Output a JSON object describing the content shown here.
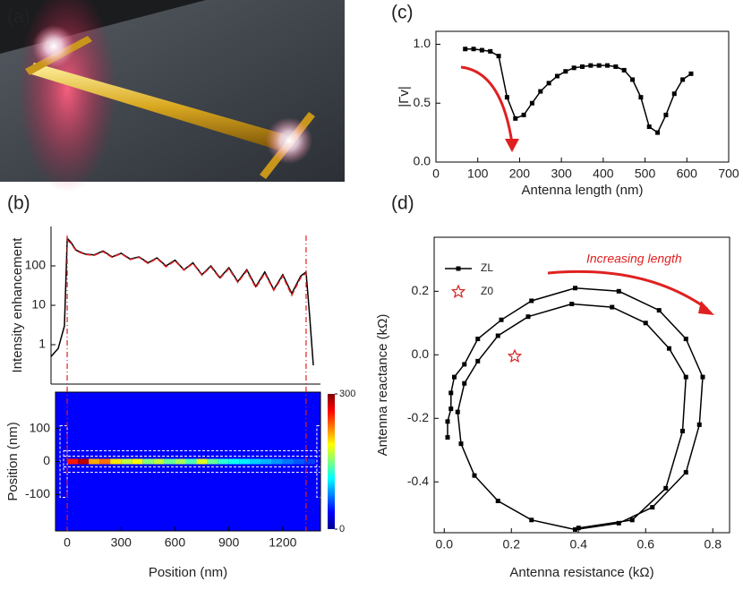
{
  "panels": [
    "(a)",
    "(b)",
    "(c)",
    "(d)"
  ],
  "chart_data": [
    {
      "type": "line",
      "yscale": "log",
      "ylabel": "Intensity enhancement",
      "x": [
        -90,
        -50,
        -15,
        0,
        20,
        50,
        100,
        150,
        200,
        250,
        300,
        350,
        400,
        450,
        500,
        550,
        600,
        650,
        700,
        750,
        800,
        850,
        900,
        950,
        1000,
        1050,
        1100,
        1150,
        1200,
        1250,
        1300,
        1330,
        1350,
        1370
      ],
      "series": [
        {
          "color": "#000000",
          "values": [
            0.5,
            0.8,
            3,
            500,
            400,
            250,
            200,
            190,
            240,
            170,
            210,
            150,
            170,
            120,
            160,
            100,
            140,
            80,
            120,
            60,
            100,
            50,
            90,
            40,
            80,
            30,
            70,
            25,
            60,
            20,
            55,
            70,
            5,
            0.3
          ]
        },
        {
          "color": "#e02020",
          "dash": true,
          "values": [
            null,
            null,
            null,
            450,
            380,
            240,
            195,
            185,
            230,
            165,
            205,
            145,
            165,
            115,
            155,
            95,
            135,
            78,
            115,
            58,
            95,
            48,
            85,
            38,
            75,
            28,
            65,
            24,
            55,
            18,
            50,
            65,
            null,
            null
          ]
        }
      ],
      "xlim": [
        -90,
        1410
      ],
      "ylim": [
        0.1,
        1000
      ],
      "yticks": [
        1,
        10,
        100
      ]
    },
    {
      "type": "heatmap",
      "xlabel": "Position (nm)",
      "ylabel": "Position (nm)",
      "x": [
        0,
        60,
        120,
        180,
        240,
        300,
        360,
        420,
        480,
        540,
        600,
        660,
        720,
        780,
        840,
        900,
        960,
        1020,
        1080,
        1140,
        1200,
        1260,
        1320
      ],
      "values": [
        250,
        280,
        200,
        220,
        180,
        150,
        170,
        130,
        150,
        120,
        140,
        110,
        160,
        120,
        100,
        90,
        80,
        70,
        60,
        50,
        40,
        30,
        20
      ],
      "xlim": [
        -65,
        1410
      ],
      "ylim": [
        -210,
        210
      ],
      "xticks": [
        0,
        300,
        600,
        900,
        1200
      ],
      "yticks": [
        -100,
        0,
        100
      ],
      "zlim": [
        0,
        300
      ],
      "zticks": [
        0,
        300
      ]
    },
    {
      "type": "line",
      "xlabel": "Antenna length (nm)",
      "ylabel": "|Γv|",
      "x": [
        70,
        90,
        110,
        130,
        150,
        170,
        190,
        210,
        230,
        250,
        270,
        290,
        310,
        330,
        350,
        370,
        390,
        410,
        430,
        450,
        470,
        490,
        510,
        530,
        550,
        570,
        590,
        610
      ],
      "series": [
        {
          "color": "#000000",
          "marker": "square",
          "values": [
            0.96,
            0.96,
            0.95,
            0.94,
            0.9,
            0.55,
            0.37,
            0.4,
            0.5,
            0.6,
            0.67,
            0.73,
            0.77,
            0.8,
            0.81,
            0.82,
            0.82,
            0.82,
            0.81,
            0.78,
            0.7,
            0.55,
            0.3,
            0.25,
            0.4,
            0.58,
            0.7,
            0.75
          ]
        }
      ],
      "xlim": [
        0,
        700
      ],
      "ylim": [
        0,
        1.11
      ],
      "xticks": [
        0,
        100,
        200,
        300,
        400,
        500,
        600,
        700
      ],
      "yticks": [
        {
          "value": 0,
          "label": "0.0"
        },
        0.5,
        {
          "value": 1,
          "label": "1.0"
        }
      ]
    },
    {
      "type": "line",
      "xlabel": "Antenna resistance (kΩ)",
      "ylabel": "Antenna reactance (kΩ)",
      "annotation": "Increasing length",
      "legend": "upper left",
      "series": [
        {
          "name": "ZL",
          "color": "#000000",
          "marker": "square",
          "x": [
            0.01,
            0.01,
            0.02,
            0.02,
            0.03,
            0.06,
            0.1,
            0.17,
            0.26,
            0.39,
            0.52,
            0.64,
            0.72,
            0.77,
            0.76,
            0.72,
            0.62,
            0.52,
            0.39,
            0.26,
            0.16,
            0.09,
            0.05,
            0.04,
            0.06,
            0.1,
            0.16,
            0.25,
            0.38,
            0.5,
            0.6,
            0.67,
            0.72,
            0.71,
            0.66,
            0.56,
            0.4
          ],
          "values": [
            -0.26,
            -0.21,
            -0.17,
            -0.12,
            -0.07,
            -0.03,
            0.05,
            0.11,
            0.17,
            0.21,
            0.2,
            0.14,
            0.05,
            -0.07,
            -0.22,
            -0.37,
            -0.48,
            -0.53,
            -0.55,
            -0.52,
            -0.46,
            -0.38,
            -0.28,
            -0.18,
            -0.09,
            -0.02,
            0.06,
            0.12,
            0.16,
            0.15,
            0.1,
            0.02,
            -0.07,
            -0.24,
            -0.42,
            -0.52,
            -0.545
          ]
        },
        {
          "name": "Z0",
          "color": "#d62020",
          "marker": "star",
          "line": false,
          "x": [
            0.21
          ],
          "values": [
            -0.005
          ]
        }
      ],
      "xlim": [
        -0.03,
        0.85
      ],
      "ylim": [
        -0.56,
        0.37
      ],
      "xticks": [
        {
          "value": 0,
          "label": "0.0"
        },
        0.2,
        0.4,
        0.6,
        0.8
      ],
      "yticks": [
        -0.4,
        -0.2,
        {
          "value": 0,
          "label": "0.0"
        },
        0.2
      ]
    }
  ]
}
